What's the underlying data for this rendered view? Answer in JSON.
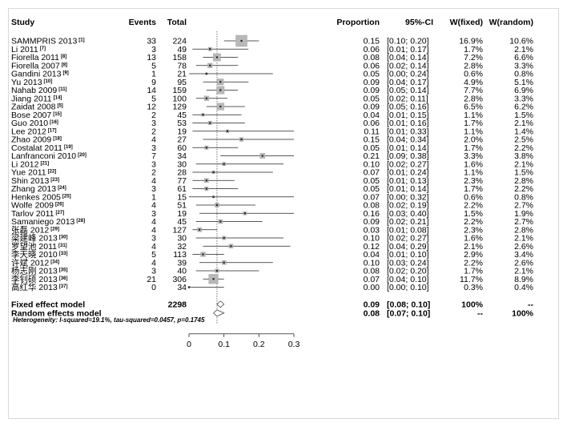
{
  "chart_data": {
    "type": "forest",
    "headers": {
      "study": "Study",
      "events": "Events",
      "total": "Total",
      "proportion": "Proportion",
      "ci": "95%-CI",
      "w_fixed": "W(fixed)",
      "w_random": "W(random)"
    },
    "studies": [
      {
        "name": "SAMMPRIS 2013",
        "ref": "[1]",
        "events": "33",
        "total": "224",
        "proportion": 0.15,
        "ci_low": 0.1,
        "ci_high": 0.2,
        "prop_text": "0.15",
        "ci_text": "[0.10; 0.20]",
        "w_fixed": "16.9%",
        "w_random": "10.6%"
      },
      {
        "name": "Li 2011",
        "ref": "[7]",
        "events": "3",
        "total": "49",
        "proportion": 0.06,
        "ci_low": 0.01,
        "ci_high": 0.17,
        "prop_text": "0.06",
        "ci_text": "[0.01; 0.17]",
        "w_fixed": "1.7%",
        "w_random": "2.1%"
      },
      {
        "name": "Fiorella 2011",
        "ref": "[8]",
        "events": "13",
        "total": "158",
        "proportion": 0.08,
        "ci_low": 0.04,
        "ci_high": 0.14,
        "prop_text": "0.08",
        "ci_text": "[0.04; 0.14]",
        "w_fixed": "7.2%",
        "w_random": "6.6%"
      },
      {
        "name": "Fiorella 2007",
        "ref": "[8]",
        "events": "5",
        "total": "78",
        "proportion": 0.06,
        "ci_low": 0.02,
        "ci_high": 0.14,
        "prop_text": "0.06",
        "ci_text": "[0.02; 0.14]",
        "w_fixed": "2.8%",
        "w_random": "3.3%"
      },
      {
        "name": "Gandini 2013",
        "ref": "[9]",
        "events": "1",
        "total": "21",
        "proportion": 0.05,
        "ci_low": 0.0,
        "ci_high": 0.24,
        "prop_text": "0.05",
        "ci_text": "[0.00; 0.24]",
        "w_fixed": "0.6%",
        "w_random": "0.8%"
      },
      {
        "name": "Yu 2013",
        "ref": "[10]",
        "events": "9",
        "total": "95",
        "proportion": 0.09,
        "ci_low": 0.04,
        "ci_high": 0.17,
        "prop_text": "0.09",
        "ci_text": "[0.04; 0.17]",
        "w_fixed": "4.9%",
        "w_random": "5.1%"
      },
      {
        "name": "Nahab 2009",
        "ref": "[11]",
        "events": "14",
        "total": "159",
        "proportion": 0.09,
        "ci_low": 0.05,
        "ci_high": 0.14,
        "prop_text": "0.09",
        "ci_text": "[0.05; 0.14]",
        "w_fixed": "7.7%",
        "w_random": "6.9%"
      },
      {
        "name": "Jiang 2011",
        "ref": "[14]",
        "events": "5",
        "total": "100",
        "proportion": 0.05,
        "ci_low": 0.02,
        "ci_high": 0.11,
        "prop_text": "0.05",
        "ci_text": "[0.02; 0.11]",
        "w_fixed": "2.8%",
        "w_random": "3.3%"
      },
      {
        "name": "Zaidat 2008",
        "ref": "[5]",
        "events": "12",
        "total": "129",
        "proportion": 0.09,
        "ci_low": 0.05,
        "ci_high": 0.16,
        "prop_text": "0.09",
        "ci_text": "[0.05; 0.16]",
        "w_fixed": "6.5%",
        "w_random": "6.2%"
      },
      {
        "name": "Bose 2007",
        "ref": "[15]",
        "events": "2",
        "total": "45",
        "proportion": 0.04,
        "ci_low": 0.01,
        "ci_high": 0.15,
        "prop_text": "0.04",
        "ci_text": "[0.01; 0.15]",
        "w_fixed": "1.1%",
        "w_random": "1.5%"
      },
      {
        "name": "Guo 2010",
        "ref": "[16]",
        "events": "3",
        "total": "53",
        "proportion": 0.06,
        "ci_low": 0.01,
        "ci_high": 0.16,
        "prop_text": "0.06",
        "ci_text": "[0.01; 0.16]",
        "w_fixed": "1.7%",
        "w_random": "2.1%"
      },
      {
        "name": "Lee 2012",
        "ref": "[17]",
        "events": "2",
        "total": "19",
        "proportion": 0.11,
        "ci_low": 0.01,
        "ci_high": 0.33,
        "prop_text": "0.11",
        "ci_text": "[0.01; 0.33]",
        "w_fixed": "1.1%",
        "w_random": "1.4%"
      },
      {
        "name": "Zhao 2009",
        "ref": "[18]",
        "events": "4",
        "total": "27",
        "proportion": 0.15,
        "ci_low": 0.04,
        "ci_high": 0.34,
        "prop_text": "0.15",
        "ci_text": "[0.04; 0.34]",
        "w_fixed": "2.0%",
        "w_random": "2.5%"
      },
      {
        "name": "Costalat 2011",
        "ref": "[19]",
        "events": "3",
        "total": "60",
        "proportion": 0.05,
        "ci_low": 0.01,
        "ci_high": 0.14,
        "prop_text": "0.05",
        "ci_text": "[0.01; 0.14]",
        "w_fixed": "1.7%",
        "w_random": "2.2%"
      },
      {
        "name": "Lanfranconi 2010",
        "ref": "[20]",
        "events": "7",
        "total": "34",
        "proportion": 0.21,
        "ci_low": 0.09,
        "ci_high": 0.38,
        "prop_text": "0.21",
        "ci_text": "[0.09; 0.38]",
        "w_fixed": "3.3%",
        "w_random": "3.8%"
      },
      {
        "name": "Li 2012",
        "ref": "[21]",
        "events": "3",
        "total": "30",
        "proportion": 0.1,
        "ci_low": 0.02,
        "ci_high": 0.27,
        "prop_text": "0.10",
        "ci_text": "[0.02; 0.27]",
        "w_fixed": "1.6%",
        "w_random": "2.1%"
      },
      {
        "name": "Yue 2011",
        "ref": "[22]",
        "events": "2",
        "total": "28",
        "proportion": 0.07,
        "ci_low": 0.01,
        "ci_high": 0.24,
        "prop_text": "0.07",
        "ci_text": "[0.01; 0.24]",
        "w_fixed": "1.1%",
        "w_random": "1.5%"
      },
      {
        "name": "Shin 2013",
        "ref": "[23]",
        "events": "4",
        "total": "77",
        "proportion": 0.05,
        "ci_low": 0.01,
        "ci_high": 0.13,
        "prop_text": "0.05",
        "ci_text": "[0.01; 0.13]",
        "w_fixed": "2.3%",
        "w_random": "2.8%"
      },
      {
        "name": "Zhang 2013",
        "ref": "[24]",
        "events": "3",
        "total": "61",
        "proportion": 0.05,
        "ci_low": 0.01,
        "ci_high": 0.14,
        "prop_text": "0.05",
        "ci_text": "[0.01; 0.14]",
        "w_fixed": "1.7%",
        "w_random": "2.2%"
      },
      {
        "name": "Henkes 2005",
        "ref": "[25]",
        "events": "1",
        "total": "15",
        "proportion": 0.07,
        "ci_low": 0.0,
        "ci_high": 0.32,
        "prop_text": "0.07",
        "ci_text": "[0.00; 0.32]",
        "w_fixed": "0.6%",
        "w_random": "0.8%"
      },
      {
        "name": "Wolfe 2009",
        "ref": "[26]",
        "events": "4",
        "total": "51",
        "proportion": 0.08,
        "ci_low": 0.02,
        "ci_high": 0.19,
        "prop_text": "0.08",
        "ci_text": "[0.02; 0.19]",
        "w_fixed": "2.2%",
        "w_random": "2.7%"
      },
      {
        "name": "Tarlov 2011",
        "ref": "[27]",
        "events": "3",
        "total": "19",
        "proportion": 0.16,
        "ci_low": 0.03,
        "ci_high": 0.4,
        "prop_text": "0.16",
        "ci_text": "[0.03; 0.40]",
        "w_fixed": "1.5%",
        "w_random": "1.9%"
      },
      {
        "name": "Samaniego 2013",
        "ref": "[28]",
        "events": "4",
        "total": "45",
        "proportion": 0.09,
        "ci_low": 0.02,
        "ci_high": 0.21,
        "prop_text": "0.09",
        "ci_text": "[0.02; 0.21]",
        "w_fixed": "2.2%",
        "w_random": "2.7%"
      },
      {
        "name": "张磊 2012",
        "ref": "[29]",
        "events": "4",
        "total": "127",
        "proportion": 0.03,
        "ci_low": 0.01,
        "ci_high": 0.08,
        "prop_text": "0.03",
        "ci_text": "[0.01; 0.08]",
        "w_fixed": "2.3%",
        "w_random": "2.8%"
      },
      {
        "name": "梁建峰 2013",
        "ref": "[30]",
        "events": "3",
        "total": "30",
        "proportion": 0.1,
        "ci_low": 0.02,
        "ci_high": 0.27,
        "prop_text": "0.10",
        "ci_text": "[0.02; 0.27]",
        "w_fixed": "1.6%",
        "w_random": "2.1%"
      },
      {
        "name": "罗望池 2011",
        "ref": "[31]",
        "events": "4",
        "total": "32",
        "proportion": 0.12,
        "ci_low": 0.04,
        "ci_high": 0.29,
        "prop_text": "0.12",
        "ci_text": "[0.04; 0.29]",
        "w_fixed": "2.1%",
        "w_random": "2.6%"
      },
      {
        "name": "李天晓 2010",
        "ref": "[33]",
        "events": "5",
        "total": "113",
        "proportion": 0.04,
        "ci_low": 0.01,
        "ci_high": 0.1,
        "prop_text": "0.04",
        "ci_text": "[0.01; 0.10]",
        "w_fixed": "2.9%",
        "w_random": "3.4%"
      },
      {
        "name": "许斌 2012",
        "ref": "[34]",
        "events": "4",
        "total": "39",
        "proportion": 0.1,
        "ci_low": 0.03,
        "ci_high": 0.24,
        "prop_text": "0.10",
        "ci_text": "[0.03; 0.24]",
        "w_fixed": "2.2%",
        "w_random": "2.6%"
      },
      {
        "name": "杨志刚 2013",
        "ref": "[35]",
        "events": "3",
        "total": "40",
        "proportion": 0.08,
        "ci_low": 0.02,
        "ci_high": 0.2,
        "prop_text": "0.08",
        "ci_text": "[0.02; 0.20]",
        "w_fixed": "1.7%",
        "w_random": "2.1%"
      },
      {
        "name": "李钊硕 2013",
        "ref": "[36]",
        "events": "21",
        "total": "306",
        "proportion": 0.07,
        "ci_low": 0.04,
        "ci_high": 0.1,
        "prop_text": "0.07",
        "ci_text": "[0.04; 0.10]",
        "w_fixed": "11.7%",
        "w_random": "8.9%"
      },
      {
        "name": "高红华 2013",
        "ref": "[37]",
        "events": "0",
        "total": "34",
        "proportion": 0.0,
        "ci_low": 0.0,
        "ci_high": 0.1,
        "prop_text": "0.00",
        "ci_text": "[0.00; 0.10]",
        "w_fixed": "0.3%",
        "w_random": "0.4%"
      }
    ],
    "summary": [
      {
        "name": "Fixed effect model",
        "total": "2298",
        "proportion": 0.09,
        "ci_low": 0.08,
        "ci_high": 0.1,
        "prop_text": "0.09",
        "ci_text": "[0.08; 0.10]",
        "w_fixed": "100%",
        "w_random": "--"
      },
      {
        "name": "Random effects model",
        "total": "",
        "proportion": 0.08,
        "ci_low": 0.07,
        "ci_high": 0.1,
        "prop_text": "0.08",
        "ci_text": "[0.07; 0.10]",
        "w_fixed": "--",
        "w_random": "100%"
      }
    ],
    "heterogeneity": "Heterogeneity: I-squared=19.1%, tau-squared=0.0457, p=0.1745",
    "x_ticks": [
      0,
      0.1,
      0.2,
      0.3
    ],
    "x_tick_labels": [
      "0",
      "0.1",
      "0.2",
      "0.3"
    ],
    "xlim": [
      0,
      0.3
    ],
    "reference_line": 0.08,
    "grid": false,
    "colors": {
      "box": "#b8b8b8",
      "line": "#222222",
      "ref_line": "#555555"
    }
  }
}
